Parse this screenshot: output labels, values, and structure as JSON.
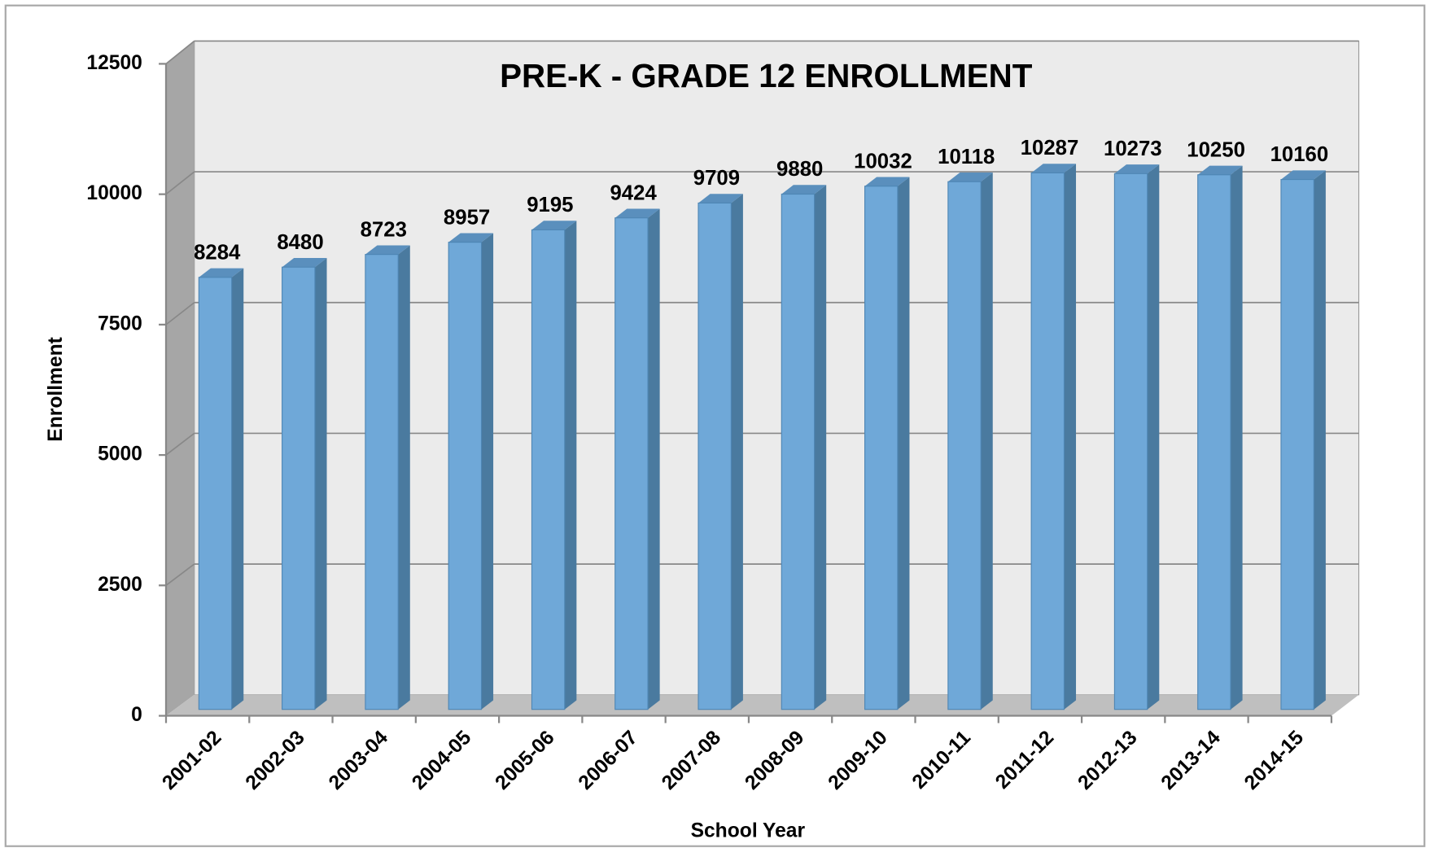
{
  "chart_data": {
    "type": "bar",
    "title": "PRE-K - GRADE 12 ENROLLMENT",
    "x_label": "School Year",
    "y_label": "Enrollment",
    "categories": [
      "2001-02",
      "2002-03",
      "2003-04",
      "2004-05",
      "2005-06",
      "2006-07",
      "2007-08",
      "2008-09",
      "2009-10",
      "2010-11",
      "2011-12",
      "2012-13",
      "2013-14",
      "2014-15"
    ],
    "values": [
      8284,
      8480,
      8723,
      8957,
      9195,
      9424,
      9709,
      9880,
      10032,
      10118,
      10287,
      10273,
      10250,
      10160
    ],
    "color": "#6fa8d8",
    "ylim": [
      0,
      12500
    ],
    "yticks": [
      0,
      2500,
      5000,
      7500,
      10000,
      12500
    ],
    "grid": true
  }
}
